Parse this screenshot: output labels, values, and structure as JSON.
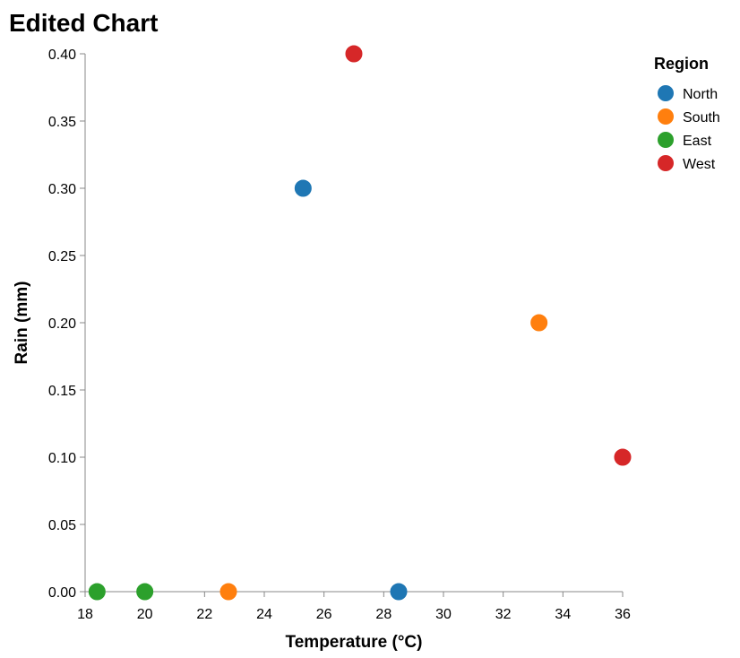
{
  "chart_data": {
    "type": "scatter",
    "title": "Edited Chart",
    "xlabel": "Temperature (°C)",
    "ylabel": "Rain (mm)",
    "xlim": [
      18,
      36
    ],
    "ylim": [
      0,
      0.4
    ],
    "x_ticks": [
      18,
      20,
      22,
      24,
      26,
      28,
      30,
      32,
      34,
      36
    ],
    "y_ticks": [
      0.0,
      0.05,
      0.1,
      0.15,
      0.2,
      0.25,
      0.3,
      0.35,
      0.4
    ],
    "grid": false,
    "legend": {
      "title": "Region",
      "placement": "top-right"
    },
    "series": [
      {
        "name": "North",
        "color": "#1f77b4",
        "points": [
          {
            "x": 25.3,
            "y": 0.3
          },
          {
            "x": 28.5,
            "y": 0.0
          }
        ]
      },
      {
        "name": "South",
        "color": "#ff7f0e",
        "points": [
          {
            "x": 33.2,
            "y": 0.2
          },
          {
            "x": 22.8,
            "y": 0.0
          }
        ]
      },
      {
        "name": "East",
        "color": "#2ca02c",
        "points": [
          {
            "x": 18.4,
            "y": 0.0
          },
          {
            "x": 20.0,
            "y": 0.0
          }
        ]
      },
      {
        "name": "West",
        "color": "#d62728",
        "points": [
          {
            "x": 27.0,
            "y": 0.4
          },
          {
            "x": 36.0,
            "y": 0.1
          }
        ]
      }
    ]
  }
}
